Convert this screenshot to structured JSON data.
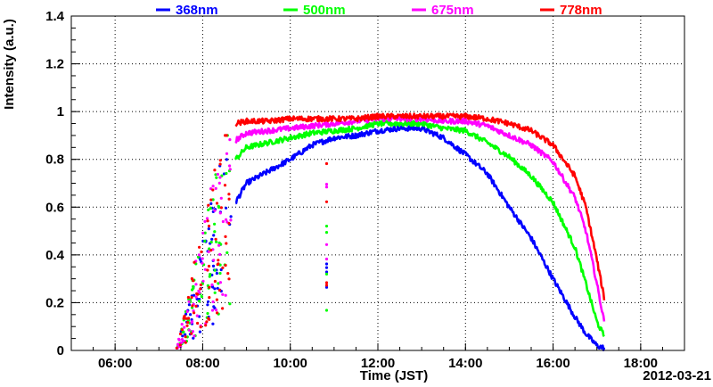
{
  "chart_data": {
    "type": "line",
    "title": "",
    "xlabel": "Time (JST)",
    "ylabel": "Intensity (a.u.)",
    "date_label": "2012-03-21",
    "xlim": [
      "05:00",
      "19:00"
    ],
    "ylim": [
      0,
      1.4
    ],
    "grid": true,
    "legend_position": "top",
    "x_ticks": [
      "06:00",
      "08:00",
      "10:00",
      "12:00",
      "14:00",
      "16:00",
      "18:00"
    ],
    "y_ticks": [
      "0",
      "0.2",
      "0.4",
      "0.6",
      "0.8",
      "1",
      "1.2",
      "1.4"
    ],
    "x": [
      "08:45",
      "09:00",
      "09:30",
      "10:00",
      "10:30",
      "11:00",
      "11:30",
      "12:00",
      "12:30",
      "13:00",
      "13:30",
      "14:00",
      "14:30",
      "15:00",
      "15:30",
      "16:00",
      "16:30",
      "16:45",
      "17:00",
      "17:10"
    ],
    "series": [
      {
        "name": "368nm",
        "color": "#0000ff",
        "values": [
          0.62,
          0.7,
          0.75,
          0.8,
          0.86,
          0.89,
          0.9,
          0.92,
          0.93,
          0.93,
          0.89,
          0.82,
          0.74,
          0.6,
          0.47,
          0.3,
          0.14,
          0.07,
          0.02,
          0.01
        ]
      },
      {
        "name": "500nm",
        "color": "#00ff00",
        "values": [
          0.8,
          0.85,
          0.87,
          0.89,
          0.91,
          0.92,
          0.93,
          0.95,
          0.95,
          0.95,
          0.93,
          0.92,
          0.87,
          0.81,
          0.73,
          0.62,
          0.43,
          0.28,
          0.12,
          0.06
        ]
      },
      {
        "name": "675nm",
        "color": "#ff00ff",
        "values": [
          0.88,
          0.91,
          0.92,
          0.93,
          0.94,
          0.95,
          0.96,
          0.97,
          0.97,
          0.97,
          0.96,
          0.96,
          0.94,
          0.9,
          0.86,
          0.79,
          0.64,
          0.5,
          0.28,
          0.12
        ]
      },
      {
        "name": "778nm",
        "color": "#ff0000",
        "values": [
          0.95,
          0.96,
          0.96,
          0.97,
          0.97,
          0.97,
          0.97,
          0.98,
          0.98,
          0.98,
          0.98,
          0.98,
          0.97,
          0.95,
          0.92,
          0.86,
          0.73,
          0.6,
          0.38,
          0.22
        ]
      }
    ]
  }
}
